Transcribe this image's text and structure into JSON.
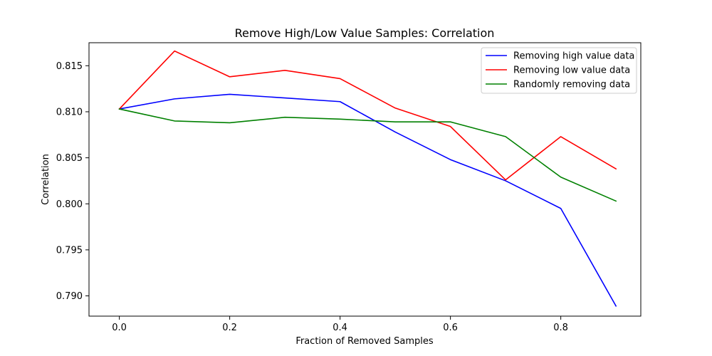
{
  "chart_data": {
    "type": "line",
    "title": "Remove High/Low Value Samples: Correlation",
    "xlabel": "Fraction of Removed Samples",
    "ylabel": "Correlation",
    "xlim": [
      -0.055,
      0.945
    ],
    "ylim": [
      0.7878,
      0.8175
    ],
    "x_ticks": [
      0.0,
      0.2,
      0.4,
      0.6,
      0.8
    ],
    "x_tick_labels": [
      "0.0",
      "0.2",
      "0.4",
      "0.6",
      "0.8"
    ],
    "y_ticks": [
      0.79,
      0.795,
      0.8,
      0.805,
      0.81,
      0.815
    ],
    "y_tick_labels": [
      "0.790",
      "0.795",
      "0.800",
      "0.805",
      "0.810",
      "0.815"
    ],
    "grid": false,
    "legend_position": "top-right",
    "x": [
      0.0,
      0.1,
      0.2,
      0.3,
      0.4,
      0.5,
      0.6,
      0.7,
      0.8,
      0.9
    ],
    "series": [
      {
        "name": "Removing high value data",
        "color": "#0000ff",
        "values": [
          0.8103,
          0.8114,
          0.8119,
          0.8115,
          0.8111,
          0.8078,
          0.8048,
          0.8025,
          0.7995,
          0.7889
        ]
      },
      {
        "name": "Removing low value data",
        "color": "#ff0000",
        "values": [
          0.8103,
          0.8166,
          0.8138,
          0.8145,
          0.8136,
          0.8104,
          0.8084,
          0.8026,
          0.8073,
          0.8038
        ]
      },
      {
        "name": "Randomly removing data",
        "color": "#008000",
        "values": [
          0.8103,
          0.809,
          0.8088,
          0.8094,
          0.8092,
          0.8089,
          0.8089,
          0.8073,
          0.8029,
          0.8003
        ]
      }
    ]
  }
}
